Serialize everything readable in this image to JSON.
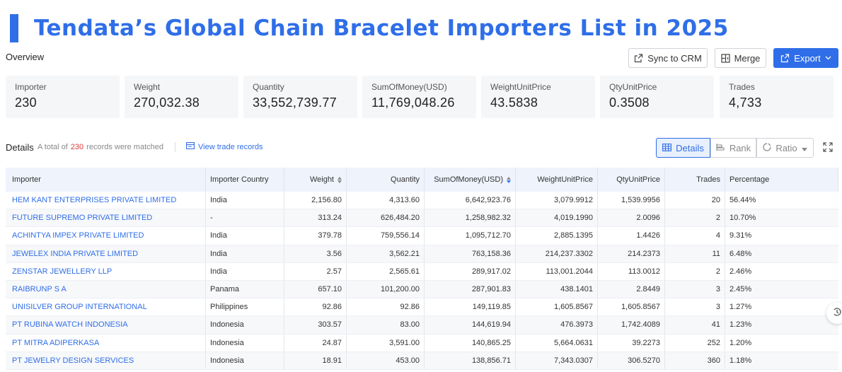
{
  "title": "Tendata’s Global Chain Bracelet Importers List in 2025",
  "overview_label": "Overview",
  "actions": {
    "sync_label": "Sync to CRM",
    "merge_label": "Merge",
    "export_label": "Export"
  },
  "stats": [
    {
      "label": "Importer",
      "value": "230"
    },
    {
      "label": "Weight",
      "value": "270,032.38"
    },
    {
      "label": "Quantity",
      "value": "33,552,739.77"
    },
    {
      "label": "SumOfMoney(USD)",
      "value": "11,769,048.26"
    },
    {
      "label": "WeightUnitPrice",
      "value": "43.5838"
    },
    {
      "label": "QtyUnitPrice",
      "value": "0.3508"
    },
    {
      "label": "Trades",
      "value": "4,733"
    }
  ],
  "details": {
    "label": "Details",
    "total_prefix": "A total of",
    "total_count": "230",
    "total_suffix": "records were matched",
    "view_link": "View trade records"
  },
  "view_tabs": {
    "details": "Details",
    "rank": "Rank",
    "ratio": "Ratio"
  },
  "colors": {
    "accent": "#2f6ee8",
    "count": "#e4393c"
  },
  "table": {
    "headers": [
      "Importer",
      "Importer Country",
      "Weight",
      "Quantity",
      "SumOfMoney(USD)",
      "WeightUnitPrice",
      "QtyUnitPrice",
      "Trades",
      "Percentage"
    ],
    "rows": [
      [
        "HEM KANT ENTERPRISES PRIVATE LIMITED",
        "India",
        "2,156.80",
        "4,313.60",
        "6,642,923.76",
        "3,079.9912",
        "1,539.9956",
        "20",
        "56.44%"
      ],
      [
        "FUTURE SUPREMO PRIVATE LIMITED",
        "-",
        "313.24",
        "626,484.20",
        "1,258,982.32",
        "4,019.1990",
        "2.0096",
        "2",
        "10.70%"
      ],
      [
        "ACHINTYA IMPEX PRIVATE LIMITED",
        "India",
        "379.78",
        "759,556.14",
        "1,095,712.70",
        "2,885.1395",
        "1.4426",
        "4",
        "9.31%"
      ],
      [
        "JEWELEX INDIA PRIVATE LIMITED",
        "India",
        "3.56",
        "3,562.21",
        "763,158.36",
        "214,237.3302",
        "214.2373",
        "11",
        "6.48%"
      ],
      [
        "ZENSTAR JEWELLERY LLP",
        "India",
        "2.57",
        "2,565.61",
        "289,917.02",
        "113,001.2044",
        "113.0012",
        "2",
        "2.46%"
      ],
      [
        "RAIBRUNP S A",
        "Panama",
        "657.10",
        "101,200.00",
        "287,901.83",
        "438.1401",
        "2.8449",
        "3",
        "2.45%"
      ],
      [
        "UNISILVER GROUP INTERNATIONAL",
        "Philippines",
        "92.86",
        "92.86",
        "149,119.85",
        "1,605.8567",
        "1,605.8567",
        "3",
        "1.27%"
      ],
      [
        "PT RUBINA WATCH INDONESIA",
        "Indonesia",
        "303.57",
        "83.00",
        "144,619.94",
        "476.3973",
        "1,742.4089",
        "41",
        "1.23%"
      ],
      [
        "PT MITRA ADIPERKASA",
        "Indonesia",
        "24.87",
        "3,591.00",
        "140,865.25",
        "5,664.0631",
        "39.2273",
        "252",
        "1.20%"
      ],
      [
        "PT JEWELRY DESIGN SERVICES",
        "Indonesia",
        "18.91",
        "453.00",
        "138,856.71",
        "7,343.0307",
        "306.5270",
        "360",
        "1.18%"
      ]
    ]
  }
}
